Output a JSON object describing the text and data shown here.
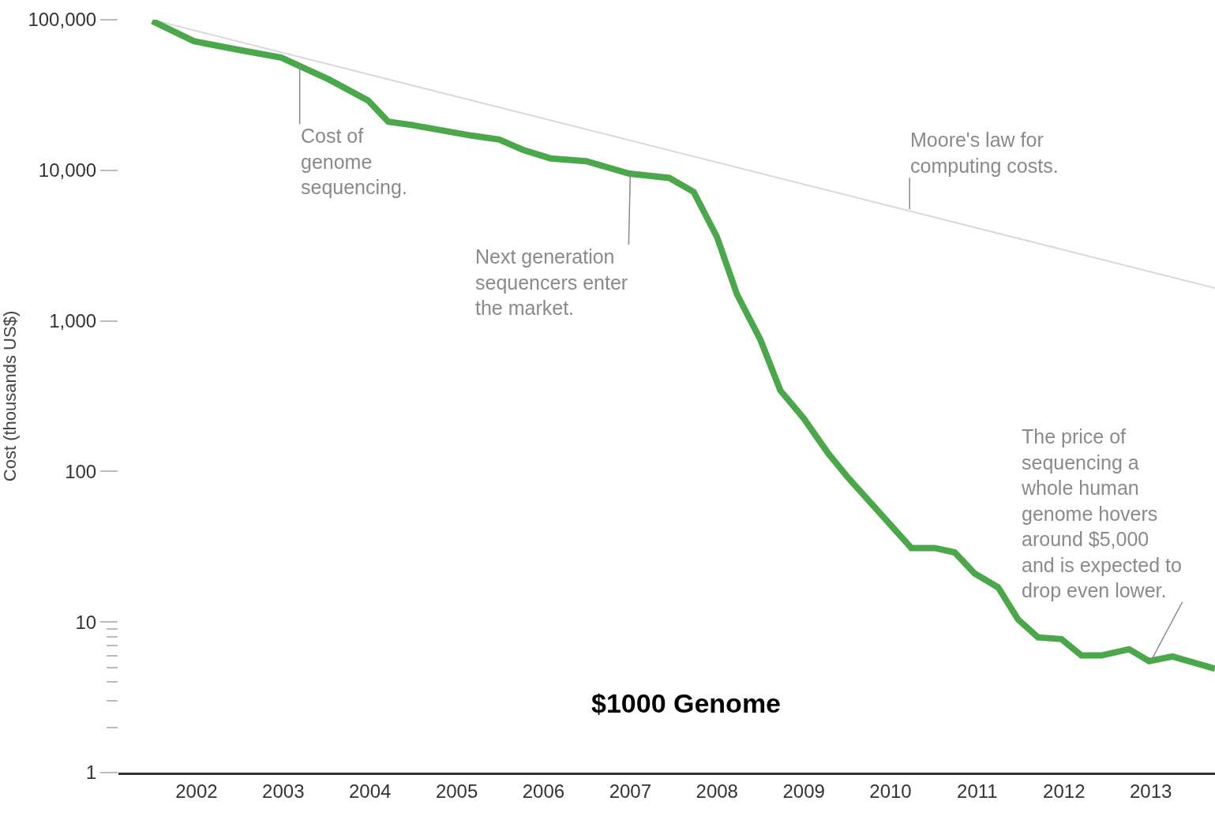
{
  "chart_data": {
    "type": "line",
    "ylabel": "Cost (thousands US$)",
    "log": "y",
    "marker": "none",
    "line_style": "solid",
    "xlim": [
      2001.1,
      2013.74
    ],
    "ylim": [
      1,
      100000
    ],
    "xticks": [
      2002,
      2003,
      2004,
      2005,
      2006,
      2007,
      2008,
      2009,
      2010,
      2011,
      2012,
      2013
    ],
    "yticks": [
      {
        "value": 1,
        "label": "1"
      },
      {
        "value": 2,
        "label": null
      },
      {
        "value": 3,
        "label": null
      },
      {
        "value": 4,
        "label": null
      },
      {
        "value": 5,
        "label": null
      },
      {
        "value": 6,
        "label": null
      },
      {
        "value": 7,
        "label": null
      },
      {
        "value": 8,
        "label": null
      },
      {
        "value": 9,
        "label": null
      },
      {
        "value": 10,
        "label": "10"
      },
      {
        "value": 100,
        "label": "100"
      },
      {
        "value": 1000,
        "label": "1,000"
      },
      {
        "value": 10000,
        "label": "10,000"
      },
      {
        "value": 100000,
        "label": "100,000"
      }
    ],
    "series": [
      {
        "color": "#d9d9d9",
        "x": [
          2001.49,
          2013.74
        ],
        "values": [
          100000,
          1650
        ]
      },
      {
        "color": "#4aa84a",
        "x": [
          2001.49,
          2001.97,
          2002.43,
          2002.98,
          2003.53,
          2003.98,
          2004.21,
          2004.48,
          2005.17,
          2005.49,
          2005.76,
          2006.08,
          2006.49,
          2006.99,
          2007.45,
          2007.73,
          2008.0,
          2008.23,
          2008.5,
          2008.73,
          2009.0,
          2009.28,
          2009.51,
          2010.24,
          2010.51,
          2010.74,
          2010.97,
          2011.24,
          2011.47,
          2011.7,
          2011.97,
          2012.2,
          2012.43,
          2012.75,
          2012.98,
          2013.25,
          2013.74
        ],
        "values": [
          98000,
          72000,
          64000,
          56000,
          40000,
          29000,
          21000,
          20000,
          17000,
          16000,
          13700,
          12000,
          11500,
          9500,
          8900,
          7200,
          3600,
          1500,
          750,
          345,
          225,
          132,
          91,
          31,
          31,
          29,
          21,
          17,
          10.4,
          7.9,
          7.7,
          6.0,
          6.0,
          6.6,
          5.5,
          5.9,
          4.9
        ]
      }
    ],
    "annotations": [
      {
        "text": "Cost of\ngenome\nsequencing.",
        "x": 2003.19,
        "y": 50000
      },
      {
        "text": "Next generation\nsequencers enter\nthe market.",
        "x": 2007.0,
        "y": 9500
      },
      {
        "text": "Moore's law for\ncomputing costs.",
        "x": 2010.22,
        "y": 5500
      },
      {
        "text": "The price of\nsequencing a\nwhole human\ngenome hovers\naround $5,000\nand is expected to\ndrop even lower.",
        "x": 2013.0,
        "y": 5.5
      },
      "$1000 Genome"
    ]
  }
}
